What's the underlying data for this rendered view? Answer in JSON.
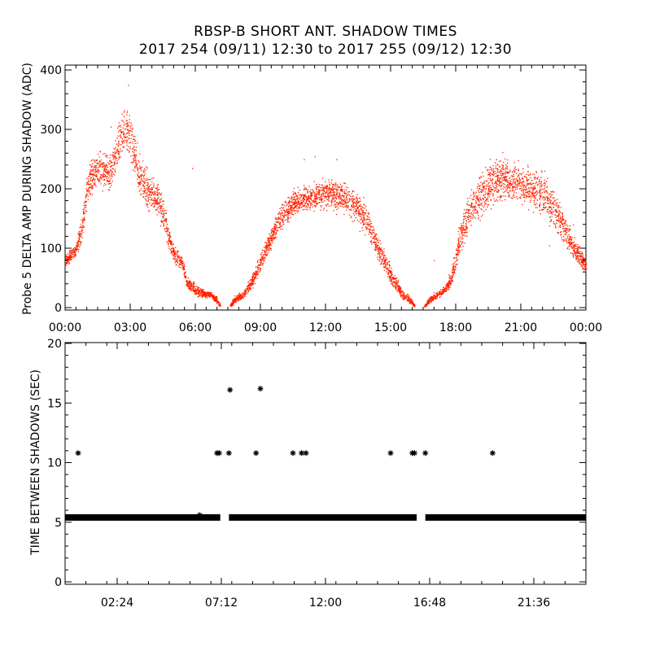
{
  "header": {
    "title": "RBSP-B SHORT ANT. SHADOW TIMES",
    "subtitle": "2017 254 (09/11) 12:30 to 2017 255 (09/12) 12:30"
  },
  "colors": {
    "points": "#ff2200",
    "stars": "#000000",
    "axes": "#000000"
  },
  "chart_data": [
    {
      "type": "scatter",
      "ylabel": "Probe 5 DELTA AMP DURING SHADOW (ADC)",
      "xlabel": "",
      "x_unit": "hours",
      "xlim": [
        0,
        24
      ],
      "ylim": [
        0,
        400
      ],
      "x_ticks": [
        "00:00",
        "03:00",
        "06:00",
        "09:00",
        "12:00",
        "15:00",
        "18:00",
        "21:00",
        "00:00"
      ],
      "y_ticks": [
        "0",
        "100",
        "200",
        "300",
        "400"
      ],
      "marker": "dot",
      "envelope": [
        {
          "x": 0.0,
          "lo": 65,
          "hi": 95
        },
        {
          "x": 0.5,
          "lo": 80,
          "hi": 115
        },
        {
          "x": 0.8,
          "lo": 110,
          "hi": 175
        },
        {
          "x": 1.0,
          "lo": 160,
          "hi": 240
        },
        {
          "x": 1.3,
          "lo": 185,
          "hi": 270
        },
        {
          "x": 1.6,
          "lo": 190,
          "hi": 275
        },
        {
          "x": 2.0,
          "lo": 185,
          "hi": 265
        },
        {
          "x": 2.2,
          "lo": 205,
          "hi": 285
        },
        {
          "x": 2.5,
          "lo": 230,
          "hi": 330
        },
        {
          "x": 2.8,
          "lo": 245,
          "hi": 360
        },
        {
          "x": 3.1,
          "lo": 220,
          "hi": 320
        },
        {
          "x": 3.4,
          "lo": 175,
          "hi": 270
        },
        {
          "x": 3.7,
          "lo": 160,
          "hi": 245
        },
        {
          "x": 4.0,
          "lo": 155,
          "hi": 230
        },
        {
          "x": 4.3,
          "lo": 145,
          "hi": 215
        },
        {
          "x": 4.6,
          "lo": 105,
          "hi": 180
        },
        {
          "x": 5.0,
          "lo": 70,
          "hi": 110
        },
        {
          "x": 5.4,
          "lo": 60,
          "hi": 90
        },
        {
          "x": 5.6,
          "lo": 30,
          "hi": 55
        },
        {
          "x": 6.0,
          "lo": 18,
          "hi": 45
        },
        {
          "x": 6.4,
          "lo": 15,
          "hi": 32
        },
        {
          "x": 6.7,
          "lo": 15,
          "hi": 30
        },
        {
          "x": 7.0,
          "lo": 2,
          "hi": 20
        },
        {
          "x": 7.15,
          "lo": 0,
          "hi": 8
        }
      ],
      "envelope_2": [
        {
          "x": 7.6,
          "lo": 0,
          "hi": 8
        },
        {
          "x": 7.8,
          "lo": 6,
          "hi": 22
        },
        {
          "x": 8.2,
          "lo": 12,
          "hi": 30
        },
        {
          "x": 8.6,
          "lo": 28,
          "hi": 60
        },
        {
          "x": 9.0,
          "lo": 55,
          "hi": 100
        },
        {
          "x": 9.5,
          "lo": 95,
          "hi": 145
        },
        {
          "x": 10.0,
          "lo": 125,
          "hi": 185
        },
        {
          "x": 10.5,
          "lo": 145,
          "hi": 205
        },
        {
          "x": 11.0,
          "lo": 155,
          "hi": 215
        },
        {
          "x": 12.0,
          "lo": 160,
          "hi": 225
        },
        {
          "x": 13.0,
          "lo": 150,
          "hi": 220
        },
        {
          "x": 13.5,
          "lo": 130,
          "hi": 205
        },
        {
          "x": 14.0,
          "lo": 105,
          "hi": 175
        },
        {
          "x": 14.5,
          "lo": 65,
          "hi": 120
        },
        {
          "x": 15.0,
          "lo": 35,
          "hi": 75
        },
        {
          "x": 15.5,
          "lo": 12,
          "hi": 35
        },
        {
          "x": 15.9,
          "lo": 5,
          "hi": 20
        },
        {
          "x": 16.1,
          "lo": 0,
          "hi": 6
        }
      ],
      "envelope_3": [
        {
          "x": 16.55,
          "lo": 0,
          "hi": 6
        },
        {
          "x": 16.8,
          "lo": 6,
          "hi": 22
        },
        {
          "x": 17.2,
          "lo": 15,
          "hi": 32
        },
        {
          "x": 17.5,
          "lo": 22,
          "hi": 40
        },
        {
          "x": 17.8,
          "lo": 30,
          "hi": 70
        },
        {
          "x": 18.2,
          "lo": 80,
          "hi": 160
        },
        {
          "x": 18.6,
          "lo": 120,
          "hi": 200
        },
        {
          "x": 19.0,
          "lo": 140,
          "hi": 230
        },
        {
          "x": 19.5,
          "lo": 160,
          "hi": 255
        },
        {
          "x": 20.0,
          "lo": 170,
          "hi": 265
        },
        {
          "x": 21.0,
          "lo": 165,
          "hi": 255
        },
        {
          "x": 22.0,
          "lo": 140,
          "hi": 240
        },
        {
          "x": 22.5,
          "lo": 120,
          "hi": 215
        },
        {
          "x": 23.0,
          "lo": 95,
          "hi": 175
        },
        {
          "x": 23.5,
          "lo": 70,
          "hi": 125
        },
        {
          "x": 24.0,
          "lo": 55,
          "hi": 85
        }
      ],
      "outliers": [
        {
          "x": 2.1,
          "y": 305
        },
        {
          "x": 2.9,
          "y": 375
        },
        {
          "x": 5.85,
          "y": 235
        },
        {
          "x": 11.5,
          "y": 255
        },
        {
          "x": 11.0,
          "y": 250
        },
        {
          "x": 17.0,
          "y": 80
        },
        {
          "x": 23.4,
          "y": 140
        },
        {
          "x": 22.3,
          "y": 105
        },
        {
          "x": 13.8,
          "y": 150
        },
        {
          "x": 12.5,
          "y": 250
        }
      ]
    },
    {
      "type": "scatter",
      "ylabel": "TIME BETWEEN SHADOWS (SEC)",
      "xlabel": "",
      "x_unit": "hours",
      "xlim": [
        0,
        24
      ],
      "ylim": [
        0,
        20
      ],
      "x_ticks": [
        "02:24",
        "07:12",
        "12:00",
        "16:48",
        "21:36"
      ],
      "y_ticks": [
        "0",
        "5",
        "10",
        "15",
        "20"
      ],
      "marker": "asterisk",
      "baseline": {
        "y": 5.4,
        "segments": [
          [
            0.0,
            7.15
          ],
          [
            7.55,
            16.2
          ],
          [
            16.6,
            24.0
          ]
        ]
      },
      "points": [
        {
          "x": 0.6,
          "y": 10.8
        },
        {
          "x": 6.2,
          "y": 5.6
        },
        {
          "x": 7.0,
          "y": 10.8
        },
        {
          "x": 7.1,
          "y": 10.8
        },
        {
          "x": 7.55,
          "y": 10.8
        },
        {
          "x": 7.6,
          "y": 16.1
        },
        {
          "x": 8.8,
          "y": 10.8
        },
        {
          "x": 9.0,
          "y": 16.2
        },
        {
          "x": 10.5,
          "y": 10.8
        },
        {
          "x": 10.9,
          "y": 10.8
        },
        {
          "x": 11.1,
          "y": 10.8
        },
        {
          "x": 15.0,
          "y": 10.8
        },
        {
          "x": 16.0,
          "y": 10.8
        },
        {
          "x": 16.1,
          "y": 10.8
        },
        {
          "x": 16.6,
          "y": 10.8
        },
        {
          "x": 19.7,
          "y": 10.8
        }
      ]
    }
  ]
}
